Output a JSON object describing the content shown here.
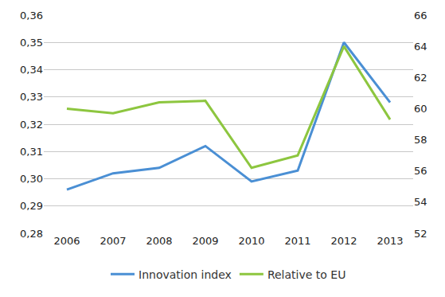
{
  "chart_data": {
    "type": "line",
    "categories": [
      "2006",
      "2007",
      "2008",
      "2009",
      "2010",
      "2011",
      "2012",
      "2013"
    ],
    "series": [
      {
        "name": "Innovation index",
        "color": "#4a8fd4",
        "values": [
          0.296,
          0.302,
          0.304,
          0.312,
          0.299,
          0.303,
          0.35,
          0.328
        ]
      },
      {
        "name": "Relative to EU",
        "color": "#8dc63f",
        "axis": "y2",
        "values": [
          60.0,
          59.7,
          60.4,
          60.5,
          56.2,
          57.0,
          64.0,
          59.3
        ]
      }
    ],
    "ylim": [
      0.28,
      0.36
    ],
    "yticks": [
      {
        "value": 0.28,
        "label": "0,28"
      },
      {
        "value": 0.29,
        "label": "0,29"
      },
      {
        "value": 0.3,
        "label": "0,30"
      },
      {
        "value": 0.31,
        "label": "0,31"
      },
      {
        "value": 0.32,
        "label": "0,32"
      },
      {
        "value": 0.33,
        "label": "0,33"
      },
      {
        "value": 0.34,
        "label": "0,34"
      },
      {
        "value": 0.35,
        "label": "0,35"
      },
      {
        "value": 0.36,
        "label": "0,36"
      }
    ],
    "y2lim": [
      52,
      66
    ],
    "y2ticks": [
      52,
      54,
      56,
      58,
      60,
      62,
      64,
      66
    ],
    "grid": true,
    "legend": "bottom"
  }
}
